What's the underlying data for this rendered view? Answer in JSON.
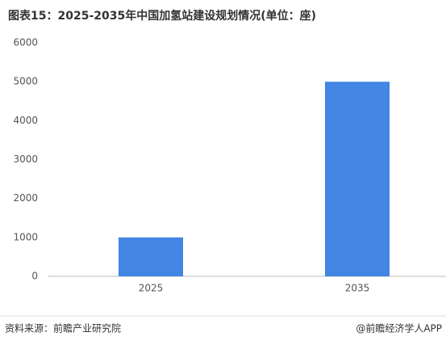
{
  "chart_data": {
    "type": "bar",
    "title": "图表15：2025-2035年中国加氢站建设规划情况(单位：座)",
    "categories": [
      "2025",
      "2035"
    ],
    "values": [
      1000,
      5000
    ],
    "color": "#4285e2",
    "ylim": [
      0,
      6000
    ],
    "yticks": [
      0,
      1000,
      2000,
      3000,
      4000,
      5000,
      6000
    ],
    "grid": false,
    "source": "资料来源：前瞻产业研究院",
    "credit": "@前瞻经济学人APP"
  }
}
